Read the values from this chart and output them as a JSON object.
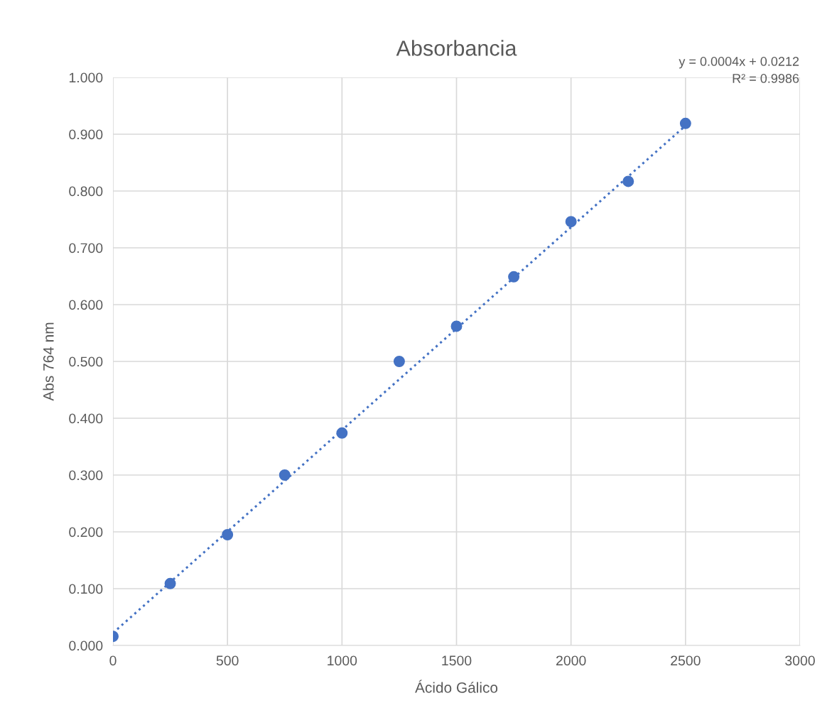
{
  "chart_data": {
    "type": "scatter",
    "title": "Absorbancia",
    "xlabel": "Ácido Gálico",
    "ylabel": "Abs 764 nm",
    "annotations": [
      "y = 0.0004x + 0.0212",
      "R² = 0.9986"
    ],
    "x": [
      0,
      250,
      500,
      750,
      1000,
      1250,
      1500,
      1750,
      2000,
      2250,
      2500
    ],
    "series": [
      {
        "color": "#4472c4",
        "marker": "circle",
        "values": [
          0.016,
          0.109,
          0.195,
          0.3,
          0.374,
          0.5,
          0.562,
          0.649,
          0.746,
          0.817,
          0.919
        ]
      },
      {
        "type": "line",
        "color": "#4472c4",
        "line_style": "dotted",
        "marker": "none",
        "x": [
          0,
          2500
        ],
        "values": [
          0.022,
          0.915
        ]
      }
    ],
    "xlim": [
      0,
      3000
    ],
    "xticks": [
      0,
      500,
      1000,
      1500,
      2000,
      2500,
      3000
    ],
    "ylim": [
      0,
      1.0
    ],
    "yticks": [
      {
        "value": 0,
        "label": "0.000"
      },
      {
        "value": 0.1,
        "label": "0.100"
      },
      {
        "value": 0.2,
        "label": "0.200"
      },
      {
        "value": 0.3,
        "label": "0.300"
      },
      {
        "value": 0.4,
        "label": "0.400"
      },
      {
        "value": 0.5,
        "label": "0.500"
      },
      {
        "value": 0.6,
        "label": "0.600"
      },
      {
        "value": 0.7,
        "label": "0.700"
      },
      {
        "value": 0.8,
        "label": "0.800"
      },
      {
        "value": 0.9,
        "label": "0.900"
      },
      {
        "value": 1.0,
        "label": "1.000"
      }
    ],
    "grid": true
  }
}
